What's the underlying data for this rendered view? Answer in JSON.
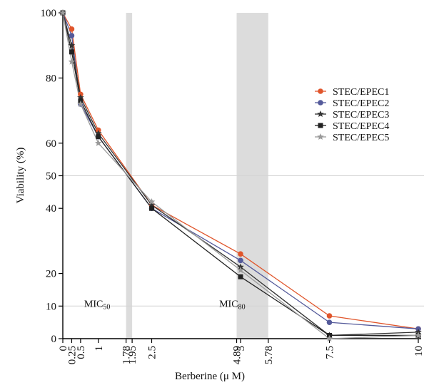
{
  "chart_data": {
    "type": "line",
    "title": "",
    "xlabel": "Berberine (μ M)",
    "ylabel": "Viability (%)",
    "xlim": [
      0,
      10
    ],
    "ylim": [
      0,
      100
    ],
    "grid": false,
    "legend_position": "right",
    "x_tick_labels": [
      "0",
      "0.25",
      "0.5",
      "1",
      "1.78",
      "1.95",
      "2.5",
      "4.89",
      "5",
      "5.78",
      "7.5",
      "10"
    ],
    "x_tick_values": [
      0,
      0.25,
      0.5,
      1,
      1.78,
      1.95,
      2.5,
      4.89,
      5,
      5.78,
      7.5,
      10
    ],
    "y_tick_labels": [
      "0",
      "10",
      "20",
      "40",
      "50",
      "60",
      "80",
      "100"
    ],
    "y_tick_values": [
      0,
      10,
      20,
      40,
      50,
      60,
      80,
      100
    ],
    "reference_lines_y": [
      10,
      50
    ],
    "bands": [
      {
        "x0": 1.78,
        "x1": 1.95
      },
      {
        "x0": 4.89,
        "x1": 5.78
      }
    ],
    "annotations": [
      {
        "base": "MIC",
        "sub": "50",
        "x": 0.6,
        "y": 10
      },
      {
        "base": "MIC",
        "sub": "80",
        "x": 4.4,
        "y": 10
      }
    ],
    "x": [
      0,
      0.25,
      0.5,
      1,
      2.5,
      5,
      7.5,
      10
    ],
    "series": [
      {
        "name": "STEC/EPEC1",
        "color": "#e0552b",
        "marker": "circle",
        "values": [
          100,
          95,
          75,
          64,
          41,
          26,
          7,
          3
        ]
      },
      {
        "name": "STEC/EPEC2",
        "color": "#545a9a",
        "marker": "circle",
        "values": [
          100,
          93,
          72,
          62,
          40,
          24,
          5,
          3
        ]
      },
      {
        "name": "STEC/EPEC3",
        "color": "#333333",
        "marker": "star",
        "values": [
          100,
          90,
          74,
          63,
          41,
          22,
          1,
          2
        ]
      },
      {
        "name": "STEC/EPEC4",
        "color": "#222222",
        "marker": "square",
        "values": [
          100,
          88,
          73,
          62,
          40,
          19,
          1,
          1
        ]
      },
      {
        "name": "STEC/EPEC5",
        "color": "#9a9a9a",
        "marker": "star",
        "values": [
          100,
          85,
          72,
          60,
          42,
          21,
          0,
          1
        ]
      }
    ]
  }
}
